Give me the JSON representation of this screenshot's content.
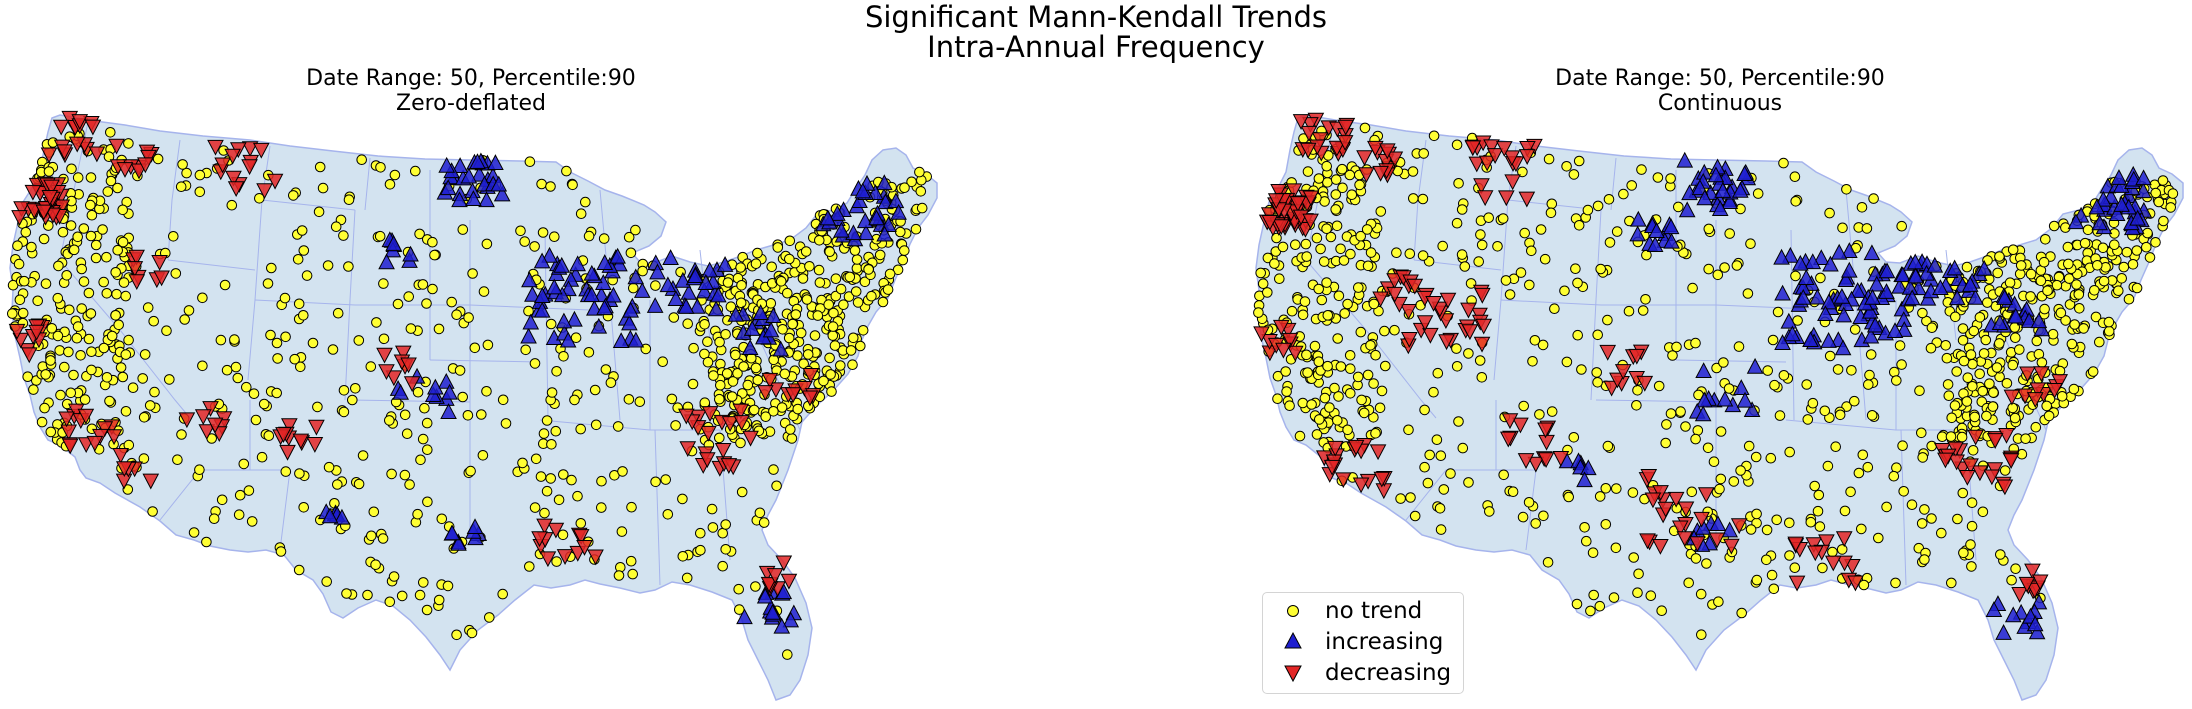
{
  "figure": {
    "title_line1": "Significant Mann-Kendall Trends",
    "title_line2": "Intra-Annual Frequency"
  },
  "panels": [
    {
      "title_line1": "Date Range: 50, Percentile:90",
      "title_line2": "Zero-deflated"
    },
    {
      "title_line1": "Date Range: 50, Percentile:90",
      "title_line2": "Continuous"
    }
  ],
  "legend": {
    "items": [
      {
        "label": "no trend",
        "marker": "circle",
        "color": "#ffff33"
      },
      {
        "label": "increasing",
        "marker": "triangle-up",
        "color": "#1f1fd0"
      },
      {
        "label": "decreasing",
        "marker": "triangle-down",
        "color": "#e32626"
      }
    ]
  },
  "colors": {
    "land": "#d3e3f0",
    "border": "#a6b4ec",
    "no_trend": "#ffff33",
    "increasing": "#1f1fd0",
    "decreasing": "#e32626"
  },
  "trend_counts_visible": "many stations; markers approximated"
}
